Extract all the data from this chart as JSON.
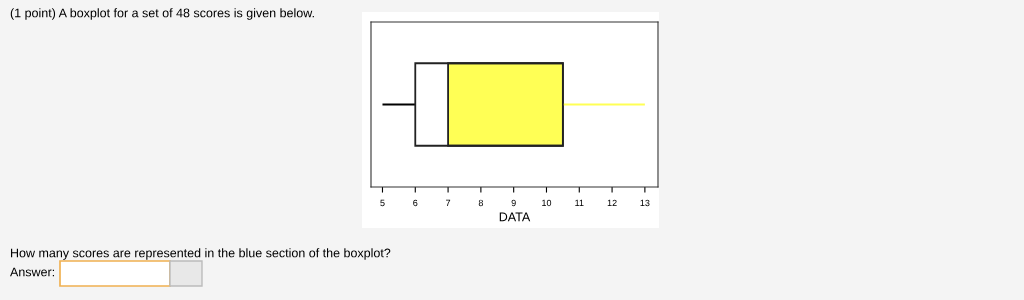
{
  "chart_data": {
    "type": "box",
    "title": "(1 point) A boxplot for a set of 48 scores is given below.",
    "xlabel": "DATA",
    "orientation": "horizontal",
    "series": [
      {
        "color": "#ffff55",
        "boxes": [
          {
            "low": 5,
            "q1": 6,
            "median": 7,
            "q3": 10.5,
            "high": 13
          }
        ]
      }
    ],
    "xlim": [
      4.65,
      13.4
    ],
    "xticks": [
      5,
      6,
      7,
      8,
      9,
      10,
      11,
      12,
      13
    ],
    "tick_labels": "x",
    "grid": false,
    "annotations": [
      "How many scores are represented in the blue section of the boxplot?",
      "Answer:"
    ]
  }
}
